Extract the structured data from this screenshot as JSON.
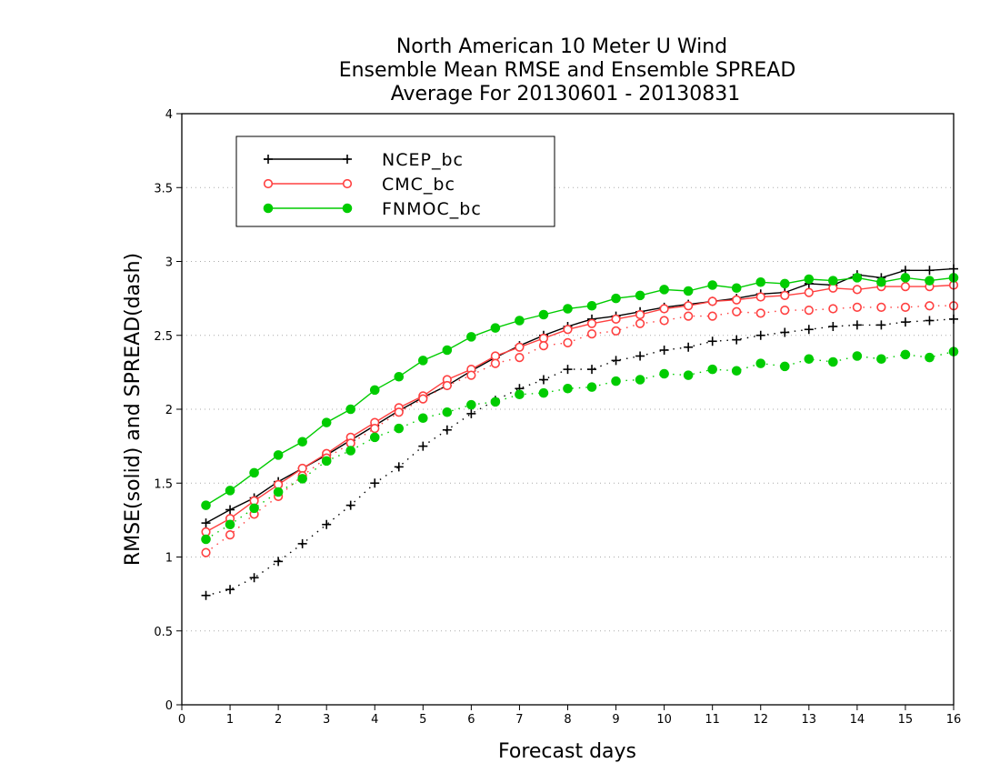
{
  "chart_data": {
    "type": "line",
    "title_lines": [
      "North American 10 Meter U Wind",
      "Ensemble Mean RMSE and Ensemble SPREAD",
      "Average For 20130601 - 20130831"
    ],
    "xlabel": "Forecast days",
    "ylabel": "RMSE(solid) and SPREAD(dash)",
    "xlim": [
      0,
      16
    ],
    "ylim": [
      0,
      4
    ],
    "xticks": [
      "0",
      "1",
      "2",
      "3",
      "4",
      "5",
      "6",
      "7",
      "8",
      "9",
      "10",
      "11",
      "12",
      "13",
      "14",
      "15",
      "16"
    ],
    "yticks": [
      "0",
      "0.5",
      "1",
      "1.5",
      "2",
      "2.5",
      "3",
      "3.5",
      "4"
    ],
    "grid": "horizontal dotted",
    "legend_position": "top-left",
    "x": [
      0.5,
      1,
      1.5,
      2,
      2.5,
      3,
      3.5,
      4,
      4.5,
      5,
      5.5,
      6,
      6.5,
      7,
      7.5,
      8,
      8.5,
      9,
      9.5,
      10,
      10.5,
      11,
      11.5,
      12,
      12.5,
      13,
      13.5,
      14,
      14.5,
      15,
      15.5,
      16
    ],
    "series": [
      {
        "name": "NCEP_bc",
        "metric": "RMSE",
        "style": "solid",
        "marker": "plus",
        "color": "#000000",
        "values": [
          1.23,
          1.32,
          1.4,
          1.51,
          1.6,
          1.69,
          1.79,
          1.89,
          1.99,
          2.08,
          2.16,
          2.26,
          2.35,
          2.43,
          2.5,
          2.56,
          2.61,
          2.63,
          2.66,
          2.69,
          2.71,
          2.73,
          2.75,
          2.78,
          2.79,
          2.85,
          2.84,
          2.91,
          2.89,
          2.94,
          2.94,
          2.95
        ]
      },
      {
        "name": "NCEP_bc",
        "metric": "SPREAD",
        "style": "dash",
        "marker": "plus",
        "color": "#000000",
        "values": [
          0.74,
          0.78,
          0.86,
          0.97,
          1.09,
          1.22,
          1.35,
          1.5,
          1.61,
          1.75,
          1.86,
          1.97,
          2.06,
          2.14,
          2.2,
          2.27,
          2.27,
          2.33,
          2.36,
          2.4,
          2.42,
          2.46,
          2.47,
          2.5,
          2.52,
          2.54,
          2.56,
          2.57,
          2.57,
          2.59,
          2.6,
          2.61
        ]
      },
      {
        "name": "CMC_bc",
        "metric": "RMSE",
        "style": "solid",
        "marker": "open-circle",
        "color": "#ff4040",
        "values": [
          1.17,
          1.26,
          1.38,
          1.49,
          1.6,
          1.7,
          1.81,
          1.91,
          2.01,
          2.09,
          2.2,
          2.27,
          2.36,
          2.42,
          2.48,
          2.54,
          2.58,
          2.61,
          2.64,
          2.68,
          2.7,
          2.73,
          2.74,
          2.76,
          2.77,
          2.79,
          2.82,
          2.81,
          2.83,
          2.83,
          2.83,
          2.84
        ]
      },
      {
        "name": "CMC_bc",
        "metric": "SPREAD",
        "style": "dash",
        "marker": "open-circle",
        "color": "#ff4040",
        "values": [
          1.03,
          1.15,
          1.29,
          1.41,
          1.55,
          1.67,
          1.77,
          1.87,
          1.98,
          2.07,
          2.16,
          2.23,
          2.31,
          2.35,
          2.43,
          2.45,
          2.51,
          2.53,
          2.58,
          2.6,
          2.63,
          2.63,
          2.66,
          2.65,
          2.67,
          2.67,
          2.68,
          2.69,
          2.69,
          2.69,
          2.7,
          2.7
        ]
      },
      {
        "name": "FNMOC_bc",
        "metric": "RMSE",
        "style": "solid",
        "marker": "filled-circle",
        "color": "#00cc00",
        "values": [
          1.35,
          1.45,
          1.57,
          1.69,
          1.78,
          1.91,
          2.0,
          2.13,
          2.22,
          2.33,
          2.4,
          2.49,
          2.55,
          2.6,
          2.64,
          2.68,
          2.7,
          2.75,
          2.77,
          2.81,
          2.8,
          2.84,
          2.82,
          2.86,
          2.85,
          2.88,
          2.87,
          2.89,
          2.86,
          2.89,
          2.87,
          2.89
        ]
      },
      {
        "name": "FNMOC_bc",
        "metric": "SPREAD",
        "style": "dash",
        "marker": "filled-circle",
        "color": "#00cc00",
        "values": [
          1.12,
          1.22,
          1.33,
          1.44,
          1.53,
          1.65,
          1.72,
          1.81,
          1.87,
          1.94,
          1.98,
          2.03,
          2.05,
          2.1,
          2.11,
          2.14,
          2.15,
          2.19,
          2.2,
          2.24,
          2.23,
          2.27,
          2.26,
          2.31,
          2.29,
          2.34,
          2.32,
          2.36,
          2.34,
          2.37,
          2.35,
          2.39
        ]
      }
    ],
    "legend": [
      "NCEP_bc",
      "CMC_bc",
      "FNMOC_bc"
    ]
  }
}
